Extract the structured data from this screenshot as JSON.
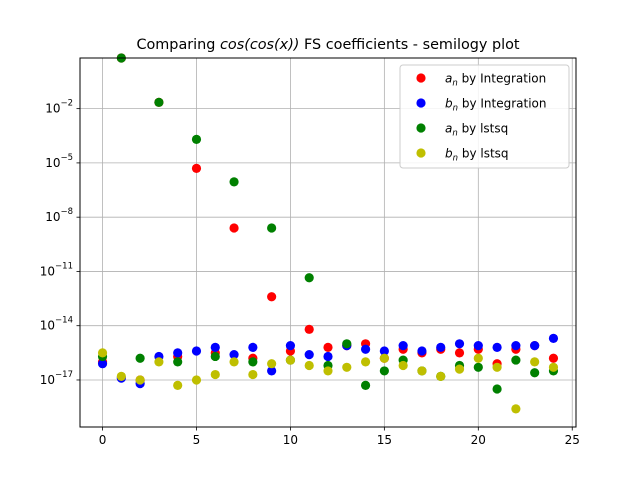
{
  "chart_data": {
    "type": "scatter",
    "title_plain": "Comparing ",
    "title_math": "cos(cos(x))",
    "title_rest": " FS coefficients - semilogy plot",
    "xlabel": "",
    "ylabel": "",
    "yscale": "log",
    "xlim": [
      -1.2,
      25.2
    ],
    "ylim_log10": [
      -19.6,
      0.8
    ],
    "grid": true,
    "legend_position": "upper right",
    "x_ticks": [
      0,
      5,
      10,
      15,
      20,
      25
    ],
    "x_tick_labels": [
      "0",
      "5",
      "10",
      "15",
      "20",
      "25"
    ],
    "y_ticks_log10": [
      -17,
      -14,
      -11,
      -8,
      -5,
      -2
    ],
    "y_tick_bases": [
      "10",
      "10",
      "10",
      "10",
      "10",
      "10"
    ],
    "y_tick_exps": [
      "−17",
      "−14",
      "−11",
      "−8",
      "−5",
      "−2"
    ],
    "series": [
      {
        "name_math": "a",
        "name_sub": "n",
        "name_rest": " by Integration",
        "color": "#ff0000",
        "x": [
          0,
          1,
          2,
          3,
          4,
          5,
          6,
          7,
          8,
          9,
          10,
          11,
          12,
          13,
          14,
          15,
          16,
          17,
          18,
          19,
          20,
          21,
          22,
          23,
          24
        ],
        "log10_y": [
          -16.0,
          0.8,
          -17.0,
          -1.65,
          -15.7,
          -5.3,
          -15.5,
          -8.6,
          -15.8,
          -12.4,
          -15.4,
          -14.2,
          -15.2,
          -15.1,
          -15.0,
          -15.8,
          -15.3,
          -15.5,
          -15.3,
          -15.5,
          -15.3,
          -16.1,
          -15.3,
          -15.1,
          -15.8
        ]
      },
      {
        "name_math": "b",
        "name_sub": "n",
        "name_rest": " by Integration",
        "color": "#0000ff",
        "x": [
          0,
          1,
          2,
          3,
          4,
          5,
          6,
          7,
          8,
          9,
          10,
          11,
          12,
          13,
          14,
          15,
          16,
          17,
          18,
          19,
          20,
          21,
          22,
          23,
          24
        ],
        "log10_y": [
          -16.1,
          -16.9,
          -17.2,
          -15.7,
          -15.5,
          -15.4,
          -15.2,
          -15.6,
          -15.2,
          -16.5,
          -15.1,
          -15.6,
          -15.7,
          -15.1,
          -15.3,
          -15.4,
          -15.1,
          -15.4,
          -15.2,
          -15.0,
          -15.1,
          -15.2,
          -15.1,
          -15.1,
          -14.7
        ]
      },
      {
        "name_math": "a",
        "name_sub": "n",
        "name_rest": " by lstsq",
        "color": "#008000",
        "x": [
          0,
          1,
          2,
          3,
          4,
          5,
          6,
          7,
          8,
          9,
          10,
          11,
          12,
          13,
          14,
          15,
          16,
          17,
          18,
          19,
          20,
          21,
          22,
          23,
          24
        ],
        "log10_y": [
          -15.7,
          0.8,
          -15.8,
          -1.65,
          -16.0,
          -3.7,
          -15.7,
          -6.05,
          -16.0,
          -8.6,
          -15.9,
          -11.35,
          -16.2,
          -15.0,
          -17.3,
          -16.5,
          -15.9,
          -16.5,
          -16.8,
          -16.2,
          -16.3,
          -17.5,
          -15.9,
          -16.6,
          -16.5
        ]
      },
      {
        "name_math": "b",
        "name_sub": "n",
        "name_rest": " by lstsq",
        "color": "#bfbf00",
        "x": [
          0,
          1,
          2,
          3,
          4,
          5,
          6,
          7,
          8,
          9,
          10,
          11,
          12,
          13,
          14,
          15,
          16,
          17,
          18,
          19,
          20,
          21,
          22,
          23,
          24
        ],
        "log10_y": [
          -15.5,
          -16.8,
          -17.0,
          -16.0,
          -17.3,
          -17.0,
          -16.7,
          -16.0,
          -16.7,
          -16.1,
          -15.9,
          -16.2,
          -16.5,
          -16.3,
          -16.0,
          -15.8,
          -16.2,
          -16.5,
          -16.8,
          -16.4,
          -15.8,
          -16.3,
          -18.6,
          -16.0,
          -16.3
        ]
      }
    ]
  }
}
